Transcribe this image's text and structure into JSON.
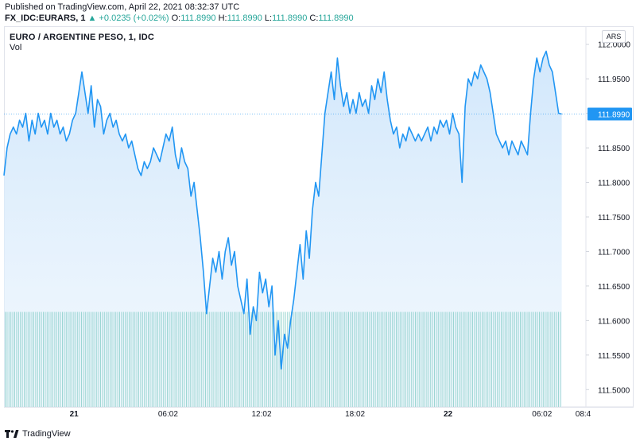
{
  "header": {
    "published": "Published on TradingView.com, April 22, 2021 08:32:37 UTC",
    "symbol": "FX_IDC:EURARS, 1",
    "change": "+0.0235 (+0.02%)",
    "o_label": "O:",
    "o_value": "111.8990",
    "h_label": "H:",
    "h_value": "111.8990",
    "l_label": "L:",
    "l_value": "111.8990",
    "c_label": "C:",
    "c_value": "111.8990"
  },
  "legend": {
    "title": "EURO / ARGENTINE PESO, 1, IDC",
    "vol": "Vol"
  },
  "currency_button": "ARS",
  "footer": {
    "brand": "TradingView"
  },
  "colors": {
    "line": "#2196f3",
    "area_top": "#cfe6fb",
    "area_bottom": "#eaf4fd",
    "volume": "#80cbc4",
    "price_tag": "#2196f3",
    "positive": "#26a69a"
  },
  "chart_data": {
    "type": "area",
    "title": "EURO / ARGENTINE PESO, 1, IDC",
    "ylim": [
      111.475,
      112.025
    ],
    "yticks": [
      "112.0000",
      "111.9500",
      "111.9000",
      "111.8500",
      "111.8000",
      "111.7500",
      "111.7000",
      "111.6500",
      "111.6000",
      "111.5500",
      "111.5000"
    ],
    "ytick_values": [
      112.0,
      111.95,
      111.9,
      111.85,
      111.8,
      111.75,
      111.7,
      111.65,
      111.6,
      111.55,
      111.5
    ],
    "xticks": [
      "21",
      "06:02",
      "12:02",
      "18:02",
      "22",
      "06:02",
      "08:4"
    ],
    "xtick_hours": [
      0,
      6.033,
      12.033,
      18.033,
      24,
      30.033,
      32.67
    ],
    "xlim_hours": [
      -4.5,
      32.8
    ],
    "last_price": "111.8990",
    "last_value": 111.899,
    "volume_level": 0.25,
    "series": [
      {
        "values": [
          [
            -4.5,
            111.81
          ],
          [
            -4.3,
            111.85
          ],
          [
            -4.1,
            111.87
          ],
          [
            -3.9,
            111.88
          ],
          [
            -3.7,
            111.87
          ],
          [
            -3.5,
            111.89
          ],
          [
            -3.3,
            111.88
          ],
          [
            -3.1,
            111.9
          ],
          [
            -2.9,
            111.86
          ],
          [
            -2.7,
            111.89
          ],
          [
            -2.5,
            111.87
          ],
          [
            -2.3,
            111.9
          ],
          [
            -2.1,
            111.88
          ],
          [
            -1.9,
            111.89
          ],
          [
            -1.7,
            111.87
          ],
          [
            -1.5,
            111.9
          ],
          [
            -1.3,
            111.88
          ],
          [
            -1.1,
            111.89
          ],
          [
            -0.9,
            111.87
          ],
          [
            -0.7,
            111.88
          ],
          [
            -0.5,
            111.86
          ],
          [
            -0.3,
            111.87
          ],
          [
            -0.1,
            111.89
          ],
          [
            0.1,
            111.9
          ],
          [
            0.3,
            111.93
          ],
          [
            0.5,
            111.96
          ],
          [
            0.7,
            111.93
          ],
          [
            0.9,
            111.9
          ],
          [
            1.1,
            111.94
          ],
          [
            1.3,
            111.88
          ],
          [
            1.5,
            111.92
          ],
          [
            1.7,
            111.91
          ],
          [
            1.9,
            111.87
          ],
          [
            2.1,
            111.89
          ],
          [
            2.3,
            111.9
          ],
          [
            2.5,
            111.88
          ],
          [
            2.7,
            111.89
          ],
          [
            2.9,
            111.87
          ],
          [
            3.1,
            111.86
          ],
          [
            3.3,
            111.87
          ],
          [
            3.5,
            111.85
          ],
          [
            3.7,
            111.86
          ],
          [
            3.9,
            111.84
          ],
          [
            4.1,
            111.82
          ],
          [
            4.3,
            111.81
          ],
          [
            4.5,
            111.83
          ],
          [
            4.7,
            111.82
          ],
          [
            4.9,
            111.83
          ],
          [
            5.1,
            111.85
          ],
          [
            5.3,
            111.84
          ],
          [
            5.5,
            111.83
          ],
          [
            5.7,
            111.85
          ],
          [
            5.9,
            111.87
          ],
          [
            6.1,
            111.86
          ],
          [
            6.3,
            111.88
          ],
          [
            6.5,
            111.84
          ],
          [
            6.7,
            111.82
          ],
          [
            6.9,
            111.85
          ],
          [
            7.1,
            111.83
          ],
          [
            7.3,
            111.82
          ],
          [
            7.5,
            111.78
          ],
          [
            7.7,
            111.8
          ],
          [
            7.9,
            111.76
          ],
          [
            8.1,
            111.72
          ],
          [
            8.3,
            111.67
          ],
          [
            8.5,
            111.61
          ],
          [
            8.7,
            111.65
          ],
          [
            8.9,
            111.69
          ],
          [
            9.1,
            111.67
          ],
          [
            9.3,
            111.7
          ],
          [
            9.5,
            111.66
          ],
          [
            9.7,
            111.7
          ],
          [
            9.9,
            111.72
          ],
          [
            10.1,
            111.68
          ],
          [
            10.3,
            111.7
          ],
          [
            10.5,
            111.65
          ],
          [
            10.7,
            111.63
          ],
          [
            10.9,
            111.61
          ],
          [
            11.1,
            111.66
          ],
          [
            11.3,
            111.58
          ],
          [
            11.5,
            111.62
          ],
          [
            11.7,
            111.6
          ],
          [
            11.9,
            111.67
          ],
          [
            12.1,
            111.64
          ],
          [
            12.3,
            111.66
          ],
          [
            12.5,
            111.62
          ],
          [
            12.7,
            111.65
          ],
          [
            12.9,
            111.55
          ],
          [
            13.1,
            111.6
          ],
          [
            13.3,
            111.53
          ],
          [
            13.5,
            111.58
          ],
          [
            13.7,
            111.56
          ],
          [
            13.9,
            111.6
          ],
          [
            14.1,
            111.63
          ],
          [
            14.3,
            111.67
          ],
          [
            14.5,
            111.71
          ],
          [
            14.7,
            111.66
          ],
          [
            14.9,
            111.73
          ],
          [
            15.1,
            111.69
          ],
          [
            15.3,
            111.76
          ],
          [
            15.5,
            111.8
          ],
          [
            15.7,
            111.78
          ],
          [
            15.9,
            111.84
          ],
          [
            16.1,
            111.9
          ],
          [
            16.3,
            111.93
          ],
          [
            16.5,
            111.96
          ],
          [
            16.7,
            111.92
          ],
          [
            16.9,
            111.98
          ],
          [
            17.1,
            111.94
          ],
          [
            17.3,
            111.91
          ],
          [
            17.5,
            111.93
          ],
          [
            17.7,
            111.9
          ],
          [
            17.9,
            111.92
          ],
          [
            18.1,
            111.9
          ],
          [
            18.3,
            111.93
          ],
          [
            18.5,
            111.91
          ],
          [
            18.7,
            111.92
          ],
          [
            18.9,
            111.9
          ],
          [
            19.1,
            111.94
          ],
          [
            19.3,
            111.92
          ],
          [
            19.5,
            111.95
          ],
          [
            19.7,
            111.93
          ],
          [
            19.9,
            111.96
          ],
          [
            20.1,
            111.92
          ],
          [
            20.3,
            111.89
          ],
          [
            20.5,
            111.87
          ],
          [
            20.7,
            111.88
          ],
          [
            20.9,
            111.85
          ],
          [
            21.1,
            111.87
          ],
          [
            21.3,
            111.86
          ],
          [
            21.5,
            111.88
          ],
          [
            21.7,
            111.87
          ],
          [
            21.9,
            111.86
          ],
          [
            22.1,
            111.87
          ],
          [
            22.3,
            111.86
          ],
          [
            22.5,
            111.87
          ],
          [
            22.7,
            111.88
          ],
          [
            22.9,
            111.86
          ],
          [
            23.1,
            111.88
          ],
          [
            23.3,
            111.87
          ],
          [
            23.5,
            111.89
          ],
          [
            23.7,
            111.88
          ],
          [
            23.9,
            111.89
          ],
          [
            24.1,
            111.87
          ],
          [
            24.3,
            111.9
          ],
          [
            24.5,
            111.88
          ],
          [
            24.7,
            111.87
          ],
          [
            24.9,
            111.8
          ],
          [
            25.1,
            111.91
          ],
          [
            25.3,
            111.95
          ],
          [
            25.5,
            111.94
          ],
          [
            25.7,
            111.96
          ],
          [
            25.9,
            111.95
          ],
          [
            26.1,
            111.97
          ],
          [
            26.3,
            111.96
          ],
          [
            26.5,
            111.95
          ],
          [
            26.7,
            111.93
          ],
          [
            26.9,
            111.9
          ],
          [
            27.1,
            111.87
          ],
          [
            27.3,
            111.86
          ],
          [
            27.5,
            111.85
          ],
          [
            27.7,
            111.86
          ],
          [
            27.9,
            111.84
          ],
          [
            28.1,
            111.86
          ],
          [
            28.3,
            111.85
          ],
          [
            28.5,
            111.84
          ],
          [
            28.7,
            111.86
          ],
          [
            28.9,
            111.85
          ],
          [
            29.1,
            111.84
          ],
          [
            29.3,
            111.9
          ],
          [
            29.5,
            111.95
          ],
          [
            29.7,
            111.98
          ],
          [
            29.9,
            111.96
          ],
          [
            30.1,
            111.98
          ],
          [
            30.3,
            111.99
          ],
          [
            30.5,
            111.97
          ],
          [
            30.7,
            111.96
          ],
          [
            30.9,
            111.93
          ],
          [
            31.1,
            111.9
          ],
          [
            31.3,
            111.899
          ]
        ]
      }
    ]
  }
}
